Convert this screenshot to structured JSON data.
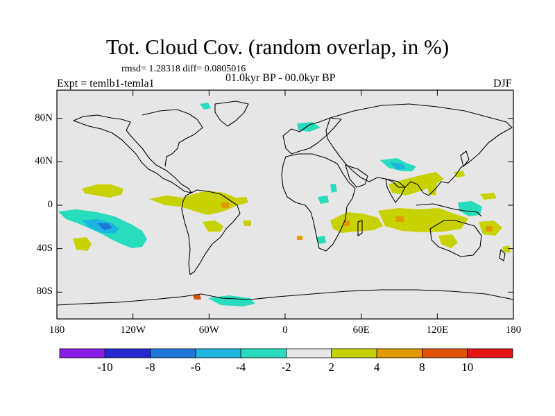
{
  "title": "Tot. Cloud Cov. (random overlap, in %)",
  "stats": "rmsd= 1.28318  diff= 0.0805016",
  "period": "01.0kyr BP - 00.0kyr BP",
  "experiment": "Expt = temlb1-temla1",
  "season": "DJF",
  "axes": {
    "lat_labels": [
      "80N",
      "40N",
      "0",
      "40S",
      "80S"
    ],
    "lat_values": [
      80,
      40,
      0,
      -40,
      -80
    ],
    "lon_labels": [
      "180",
      "120W",
      "60W",
      "0",
      "60E",
      "120E",
      "180"
    ],
    "lon_values": [
      -180,
      -120,
      -60,
      0,
      60,
      120,
      180
    ]
  },
  "colorbar": {
    "labels": [
      "-10",
      "-8",
      "-6",
      "-4",
      "-2",
      "2",
      "4",
      "8",
      "10"
    ],
    "colors": [
      "#8a1ee6",
      "#2828d2",
      "#1e78dc",
      "#1eb4e0",
      "#28dcbe",
      "#e6e6e6",
      "#c8d200",
      "#e09a00",
      "#e05000",
      "#e61414"
    ]
  },
  "colors": {
    "background_field": "#e6e6e6",
    "coast": "#000000"
  }
}
